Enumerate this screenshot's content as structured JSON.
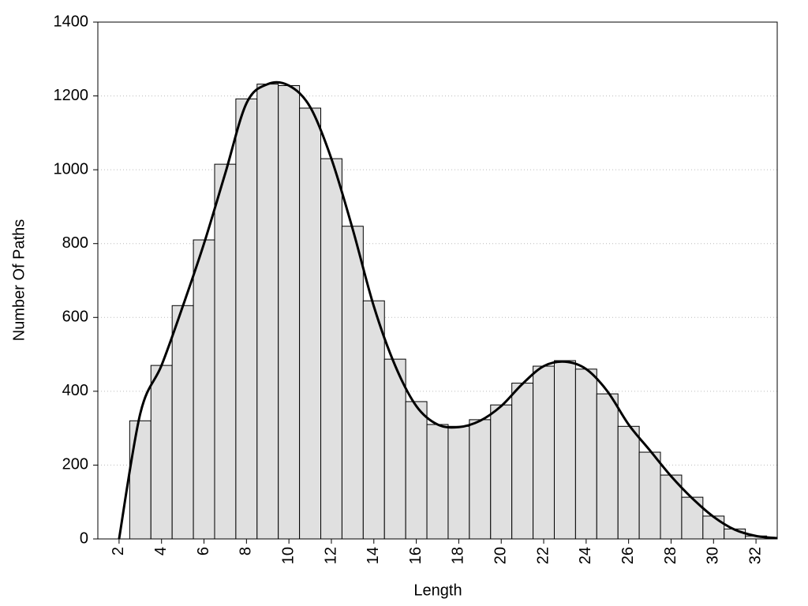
{
  "chart_data": {
    "type": "histogram",
    "xlabel": "Length",
    "ylabel": "Number Of Paths",
    "bins": [
      2.5,
      3.5,
      4.5,
      5.5,
      6.5,
      7.5,
      8.5,
      9.5,
      10.5,
      11.5,
      12.5,
      13.5,
      14.5,
      15.5,
      16.5,
      17.5,
      18.5,
      19.5,
      20.5,
      21.5,
      22.5,
      23.5,
      24.5,
      25.5,
      26.5,
      27.5,
      28.5,
      29.5,
      30.5,
      31.5,
      32.5
    ],
    "values": [
      320,
      470,
      632,
      810,
      1015,
      1192,
      1232,
      1228,
      1167,
      1030,
      847,
      645,
      487,
      372,
      310,
      305,
      323,
      363,
      422,
      468,
      483,
      460,
      393,
      305,
      235,
      173,
      113,
      62,
      27,
      8
    ],
    "color": "#e0e0e0",
    "line": {
      "color": "#000000",
      "x": [
        2,
        3,
        4,
        5,
        6,
        7,
        8,
        9,
        10,
        11,
        12,
        13,
        14,
        15,
        16,
        17,
        18,
        19,
        20,
        21,
        22,
        23,
        24,
        25,
        26,
        27,
        28,
        29,
        30,
        31,
        32,
        33
      ],
      "values": [
        0,
        340,
        470,
        630,
        800,
        990,
        1180,
        1232,
        1228,
        1170,
        1030,
        840,
        630,
        470,
        360,
        310,
        303,
        320,
        360,
        420,
        468,
        480,
        460,
        400,
        310,
        240,
        170,
        110,
        60,
        25,
        8,
        2
      ]
    },
    "xlim": [
      1,
      33
    ],
    "xticks": [
      2,
      4,
      6,
      8,
      10,
      12,
      14,
      16,
      18,
      20,
      22,
      24,
      26,
      28,
      30,
      32
    ],
    "ylim": [
      0,
      1400
    ],
    "yticks": [
      0,
      200,
      400,
      600,
      800,
      1000,
      1200,
      1400
    ],
    "grid": true
  }
}
